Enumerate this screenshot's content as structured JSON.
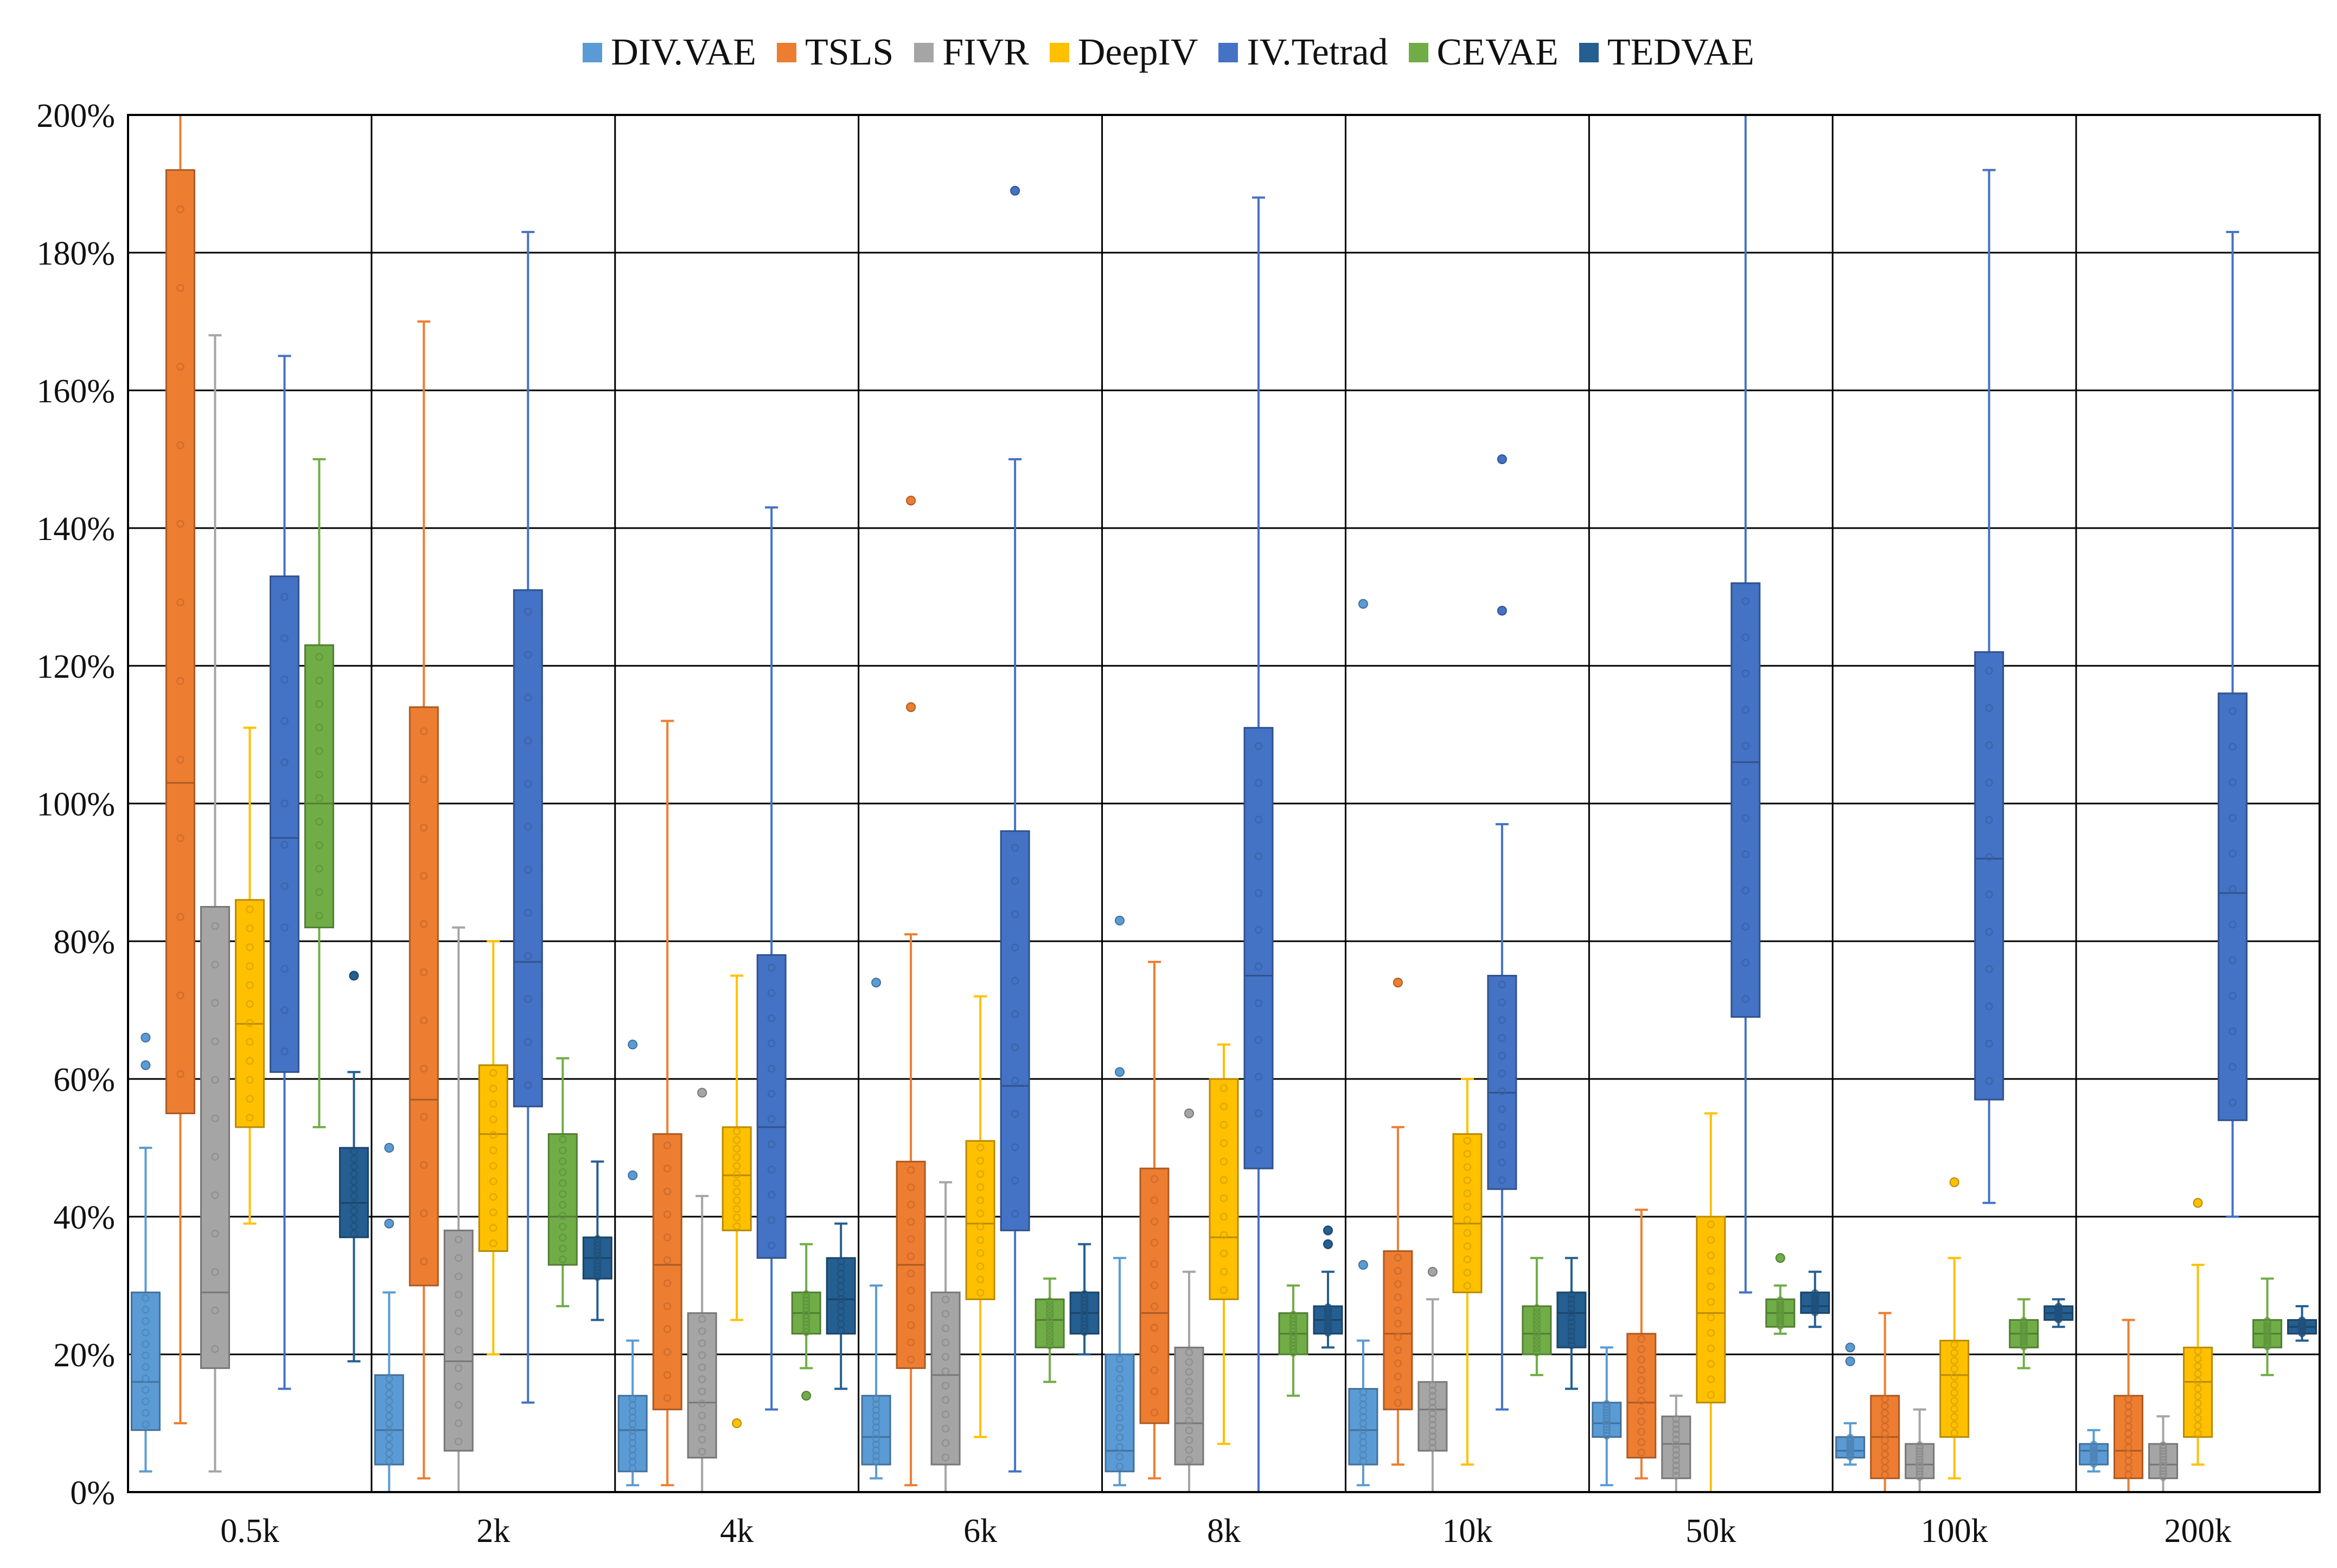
{
  "chart_data": {
    "type": "boxplot",
    "title": "",
    "xlabel": "",
    "ylabel": "",
    "ylim": [
      0,
      200
    ],
    "y_ticks": [
      "0%",
      "20%",
      "40%",
      "60%",
      "80%",
      "100%",
      "120%",
      "140%",
      "160%",
      "180%",
      "200%"
    ],
    "y_tick_values": [
      0,
      20,
      40,
      60,
      80,
      100,
      120,
      140,
      160,
      180,
      200
    ],
    "categories": [
      "0.5k",
      "2k",
      "4k",
      "6k",
      "8k",
      "10k",
      "50k",
      "100k",
      "200k"
    ],
    "grid": true,
    "legend_position": "top-center",
    "series": [
      {
        "name": "DIV.VAE",
        "color": "#5b9bd5",
        "boxes": [
          {
            "min": 3,
            "q1": 9,
            "median": 16,
            "q3": 29,
            "max": 50,
            "outliers": [
              62,
              66
            ]
          },
          {
            "min": 0,
            "q1": 4,
            "median": 9,
            "q3": 17,
            "max": 29,
            "outliers": [
              39,
              50
            ]
          },
          {
            "min": 1,
            "q1": 3,
            "median": 9,
            "q3": 14,
            "max": 22,
            "outliers": [
              46,
              65
            ]
          },
          {
            "min": 2,
            "q1": 4,
            "median": 8,
            "q3": 14,
            "max": 30,
            "outliers": [
              74
            ]
          },
          {
            "min": 1,
            "q1": 3,
            "median": 6,
            "q3": 20,
            "max": 34,
            "outliers": [
              61,
              83
            ]
          },
          {
            "min": 1,
            "q1": 4,
            "median": 9,
            "q3": 15,
            "max": 22,
            "outliers": [
              33,
              129
            ]
          },
          {
            "min": 1,
            "q1": 8,
            "median": 10,
            "q3": 13,
            "max": 21,
            "outliers": []
          },
          {
            "min": 4,
            "q1": 5,
            "median": 6,
            "q3": 8,
            "max": 10,
            "outliers": [
              19,
              21
            ]
          },
          {
            "min": 3,
            "q1": 4,
            "median": 6,
            "q3": 7,
            "max": 9,
            "outliers": []
          }
        ]
      },
      {
        "name": "TSLS",
        "color": "#ed7d31",
        "boxes": [
          {
            "min": 10,
            "q1": 55,
            "median": 103,
            "q3": 192,
            "max": 200,
            "outliers": []
          },
          {
            "min": 2,
            "q1": 30,
            "median": 57,
            "q3": 114,
            "max": 170,
            "outliers": []
          },
          {
            "min": 1,
            "q1": 12,
            "median": 33,
            "q3": 52,
            "max": 112,
            "outliers": []
          },
          {
            "min": 1,
            "q1": 18,
            "median": 33,
            "q3": 48,
            "max": 81,
            "outliers": [
              114,
              144
            ]
          },
          {
            "min": 2,
            "q1": 10,
            "median": 26,
            "q3": 47,
            "max": 77,
            "outliers": []
          },
          {
            "min": 4,
            "q1": 12,
            "median": 23,
            "q3": 35,
            "max": 53,
            "outliers": [
              74
            ]
          },
          {
            "min": 2,
            "q1": 5,
            "median": 13,
            "q3": 23,
            "max": 41,
            "outliers": []
          },
          {
            "min": 0,
            "q1": 2,
            "median": 8,
            "q3": 14,
            "max": 26,
            "outliers": []
          },
          {
            "min": 0,
            "q1": 2,
            "median": 6,
            "q3": 14,
            "max": 25,
            "outliers": []
          }
        ]
      },
      {
        "name": "FIVR",
        "color": "#a5a5a5",
        "boxes": [
          {
            "min": 3,
            "q1": 18,
            "median": 29,
            "q3": 85,
            "max": 168,
            "outliers": []
          },
          {
            "min": 0,
            "q1": 6,
            "median": 19,
            "q3": 38,
            "max": 82,
            "outliers": []
          },
          {
            "min": 0,
            "q1": 5,
            "median": 13,
            "q3": 26,
            "max": 43,
            "outliers": [
              58
            ]
          },
          {
            "min": 0,
            "q1": 4,
            "median": 17,
            "q3": 29,
            "max": 45,
            "outliers": []
          },
          {
            "min": 0,
            "q1": 4,
            "median": 10,
            "q3": 21,
            "max": 32,
            "outliers": [
              55
            ]
          },
          {
            "min": 0,
            "q1": 6,
            "median": 12,
            "q3": 16,
            "max": 28,
            "outliers": [
              32
            ]
          },
          {
            "min": 0,
            "q1": 2,
            "median": 7,
            "q3": 11,
            "max": 14,
            "outliers": []
          },
          {
            "min": 0,
            "q1": 2,
            "median": 4,
            "q3": 7,
            "max": 12,
            "outliers": []
          },
          {
            "min": 0,
            "q1": 2,
            "median": 4,
            "q3": 7,
            "max": 11,
            "outliers": []
          }
        ]
      },
      {
        "name": "DeepIV",
        "color": "#ffc000",
        "boxes": [
          {
            "min": 39,
            "q1": 53,
            "median": 68,
            "q3": 86,
            "max": 111,
            "outliers": []
          },
          {
            "min": 20,
            "q1": 35,
            "median": 52,
            "q3": 62,
            "max": 80,
            "outliers": []
          },
          {
            "min": 25,
            "q1": 38,
            "median": 46,
            "q3": 53,
            "max": 75,
            "outliers": [
              10
            ]
          },
          {
            "min": 8,
            "q1": 28,
            "median": 39,
            "q3": 51,
            "max": 72,
            "outliers": []
          },
          {
            "min": 7,
            "q1": 28,
            "median": 37,
            "q3": 60,
            "max": 65,
            "outliers": []
          },
          {
            "min": 4,
            "q1": 29,
            "median": 39,
            "q3": 52,
            "max": 60,
            "outliers": []
          },
          {
            "min": 0,
            "q1": 13,
            "median": 26,
            "q3": 40,
            "max": 55,
            "outliers": []
          },
          {
            "min": 2,
            "q1": 8,
            "median": 17,
            "q3": 22,
            "max": 34,
            "outliers": [
              45
            ]
          },
          {
            "min": 4,
            "q1": 8,
            "median": 16,
            "q3": 21,
            "max": 33,
            "outliers": [
              42
            ]
          }
        ]
      },
      {
        "name": "IV.Tetrad",
        "color": "#4472c4",
        "boxes": [
          {
            "min": 15,
            "q1": 61,
            "median": 95,
            "q3": 133,
            "max": 165,
            "outliers": []
          },
          {
            "min": 13,
            "q1": 56,
            "median": 77,
            "q3": 131,
            "max": 183,
            "outliers": []
          },
          {
            "min": 12,
            "q1": 34,
            "median": 53,
            "q3": 78,
            "max": 143,
            "outliers": []
          },
          {
            "min": 3,
            "q1": 38,
            "median": 59,
            "q3": 96,
            "max": 150,
            "outliers": [
              189
            ]
          },
          {
            "min": 0,
            "q1": 47,
            "median": 75,
            "q3": 111,
            "max": 188,
            "outliers": []
          },
          {
            "min": 12,
            "q1": 44,
            "median": 58,
            "q3": 75,
            "max": 97,
            "outliers": [
              128,
              150
            ]
          },
          {
            "min": 29,
            "q1": 69,
            "median": 106,
            "q3": 132,
            "max": 200,
            "outliers": []
          },
          {
            "min": 42,
            "q1": 57,
            "median": 92,
            "q3": 122,
            "max": 192,
            "outliers": []
          },
          {
            "min": 40,
            "q1": 54,
            "median": 87,
            "q3": 116,
            "max": 183,
            "outliers": []
          }
        ]
      },
      {
        "name": "CEVAE",
        "color": "#70ad47",
        "boxes": [
          {
            "min": 53,
            "q1": 82,
            "median": 100,
            "q3": 123,
            "max": 150,
            "outliers": []
          },
          {
            "min": 27,
            "q1": 33,
            "median": 40,
            "q3": 52,
            "max": 63,
            "outliers": []
          },
          {
            "min": 18,
            "q1": 23,
            "median": 26,
            "q3": 29,
            "max": 36,
            "outliers": [
              14
            ]
          },
          {
            "min": 16,
            "q1": 21,
            "median": 25,
            "q3": 28,
            "max": 31,
            "outliers": []
          },
          {
            "min": 14,
            "q1": 20,
            "median": 23,
            "q3": 26,
            "max": 30,
            "outliers": []
          },
          {
            "min": 17,
            "q1": 20,
            "median": 23,
            "q3": 27,
            "max": 34,
            "outliers": []
          },
          {
            "min": 23,
            "q1": 24,
            "median": 26,
            "q3": 28,
            "max": 30,
            "outliers": [
              34
            ]
          },
          {
            "min": 18,
            "q1": 21,
            "median": 23,
            "q3": 25,
            "max": 28,
            "outliers": []
          },
          {
            "min": 17,
            "q1": 21,
            "median": 23,
            "q3": 25,
            "max": 31,
            "outliers": []
          }
        ]
      },
      {
        "name": "TEDVAE",
        "color": "#255e91",
        "boxes": [
          {
            "min": 19,
            "q1": 37,
            "median": 42,
            "q3": 50,
            "max": 61,
            "outliers": [
              75
            ]
          },
          {
            "min": 25,
            "q1": 31,
            "median": 34,
            "q3": 37,
            "max": 48,
            "outliers": []
          },
          {
            "min": 15,
            "q1": 23,
            "median": 28,
            "q3": 34,
            "max": 39,
            "outliers": []
          },
          {
            "min": 20,
            "q1": 23,
            "median": 26,
            "q3": 29,
            "max": 36,
            "outliers": []
          },
          {
            "min": 21,
            "q1": 23,
            "median": 25,
            "q3": 27,
            "max": 32,
            "outliers": [
              36,
              38
            ]
          },
          {
            "min": 15,
            "q1": 21,
            "median": 26,
            "q3": 29,
            "max": 34,
            "outliers": []
          },
          {
            "min": 24,
            "q1": 26,
            "median": 27,
            "q3": 29,
            "max": 32,
            "outliers": []
          },
          {
            "min": 24,
            "q1": 25,
            "median": 26,
            "q3": 27,
            "max": 28,
            "outliers": []
          },
          {
            "min": 22,
            "q1": 23,
            "median": 24,
            "q3": 25,
            "max": 27,
            "outliers": []
          }
        ]
      }
    ]
  }
}
